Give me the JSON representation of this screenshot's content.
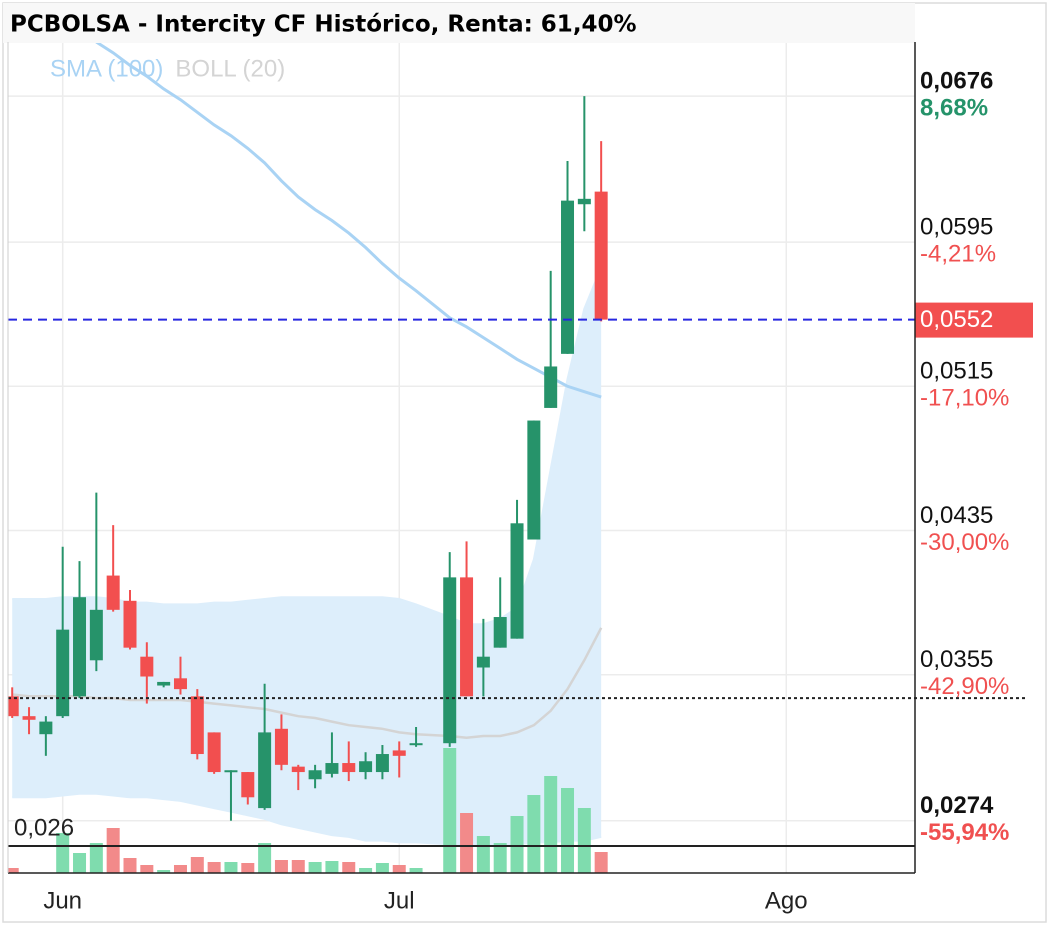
{
  "chart_data": {
    "type": "candlestick",
    "title": "PCBOLSA - Intercity CF Histórico, Renta: 61,40%",
    "x": [
      0,
      1,
      2,
      3,
      4,
      5,
      6,
      7,
      8,
      9,
      10,
      11,
      12,
      13,
      14,
      15,
      16,
      17,
      18,
      19,
      20,
      21,
      22,
      23,
      24,
      26,
      27,
      28,
      29,
      30,
      31,
      32,
      33,
      34,
      35
    ],
    "open": [
      0.0343,
      0.0332,
      0.0322,
      0.0332,
      0.0343,
      0.0363,
      0.041,
      0.0396,
      0.0365,
      0.0349,
      0.0353,
      0.0343,
      0.0323,
      0.0301,
      0.0301,
      0.0281,
      0.0325,
      0.0304,
      0.0297,
      0.03,
      0.0306,
      0.0301,
      0.0301,
      0.0313,
      0.0316,
      0.0317,
      0.0409,
      0.0359,
      0.037,
      0.0375,
      0.043,
      0.0503,
      0.0533,
      0.0616,
      0.0623
    ],
    "high": [
      0.0348,
      0.0337,
      0.0332,
      0.0426,
      0.0418,
      0.0456,
      0.0438,
      0.0402,
      0.0373,
      0.0351,
      0.0365,
      0.0347,
      0.0323,
      0.0302,
      0.0301,
      0.035,
      0.0333,
      0.0305,
      0.0305,
      0.0323,
      0.0318,
      0.0312,
      0.0316,
      0.0318,
      0.0326,
      0.0423,
      0.0429,
      0.0386,
      0.0409,
      0.0452,
      0.0496,
      0.0579,
      0.064,
      0.0676,
      0.0651
    ],
    "low": [
      0.0331,
      0.0322,
      0.031,
      0.0331,
      0.0342,
      0.0357,
      0.039,
      0.0369,
      0.0339,
      0.0348,
      0.0344,
      0.0308,
      0.03,
      0.0274,
      0.0283,
      0.028,
      0.0302,
      0.0291,
      0.0292,
      0.0298,
      0.0296,
      0.0297,
      0.0297,
      0.0298,
      0.0315,
      0.0315,
      0.0343,
      0.0343,
      0.037,
      0.0375,
      0.043,
      0.0503,
      0.0533,
      0.0601,
      0.0551
    ],
    "close": [
      0.0332,
      0.033,
      0.0329,
      0.038,
      0.0398,
      0.0391,
      0.0391,
      0.037,
      0.0354,
      0.0351,
      0.0347,
      0.0311,
      0.0301,
      0.0302,
      0.0287,
      0.0323,
      0.0305,
      0.0301,
      0.0302,
      0.0306,
      0.0301,
      0.0307,
      0.0311,
      0.031,
      0.0317,
      0.0409,
      0.0343,
      0.0365,
      0.0387,
      0.0439,
      0.0496,
      0.0526,
      0.0618,
      0.0619,
      0.0552
    ],
    "volume": [
      5,
      0,
      0,
      40,
      20,
      30,
      45,
      15,
      8,
      3,
      8,
      16,
      11,
      11,
      10,
      30,
      13,
      13,
      11,
      12,
      11,
      5,
      10,
      8,
      5,
      125,
      60,
      37,
      30,
      57,
      78,
      97,
      85,
      65,
      21
    ],
    "up_color": "#26936a",
    "down_color": "#f24f4f",
    "volume_up_color": "#7fdcae",
    "volume_down_color": "#f28a8a",
    "series": [
      {
        "name": "SMA (100)",
        "color": "#a9d3f4",
        "values": [
          null,
          null,
          null,
          null,
          null,
          0.0706,
          0.07,
          0.0693,
          0.0687,
          0.068,
          0.0674,
          0.0667,
          0.066,
          0.0654,
          0.0647,
          0.0639,
          0.0629,
          0.062,
          0.0613,
          0.0607,
          0.06,
          0.0592,
          0.0583,
          0.0575,
          0.0568,
          0.0553,
          0.0548,
          0.0542,
          0.0536,
          0.053,
          0.0525,
          0.052,
          0.0515,
          0.0512,
          0.0509
        ]
      },
      {
        "name": "BOLL (20)",
        "color": "#d4d4d4",
        "band_color": "#ddeefb",
        "upper": [
          0.0397,
          0.0397,
          0.0397,
          0.0398,
          0.0398,
          0.0398,
          0.0397,
          0.0395,
          0.0395,
          0.0394,
          0.0394,
          0.0394,
          0.0395,
          0.0395,
          0.0396,
          0.0397,
          0.0398,
          0.0398,
          0.0398,
          0.0398,
          0.0398,
          0.0398,
          0.0398,
          0.0397,
          0.0394,
          0.0387,
          0.0383,
          0.0383,
          0.0386,
          0.0392,
          0.0419,
          0.0469,
          0.0519,
          0.0558,
          0.0581
        ],
        "middle": [
          0.0344,
          0.0343,
          0.0343,
          0.0343,
          0.0343,
          0.0342,
          0.0342,
          0.0341,
          0.0341,
          0.0341,
          0.0341,
          0.034,
          0.0339,
          0.0338,
          0.0337,
          0.0336,
          0.0334,
          0.0332,
          0.0331,
          0.0329,
          0.0327,
          0.0326,
          0.0325,
          0.0323,
          0.0322,
          0.0321,
          0.032,
          0.0321,
          0.0321,
          0.0323,
          0.0327,
          0.0335,
          0.0347,
          0.0363,
          0.0381
        ],
        "lower": [
          0.0287,
          0.0287,
          0.0287,
          0.0288,
          0.0289,
          0.0289,
          0.0288,
          0.0287,
          0.0287,
          0.0286,
          0.0285,
          0.0283,
          0.0281,
          0.0279,
          0.0277,
          0.0275,
          0.0272,
          0.027,
          0.0268,
          0.0266,
          0.0265,
          0.0263,
          0.0263,
          0.0262,
          0.0262,
          0.0261,
          0.0261,
          0.0261,
          0.0261,
          0.0261,
          0.0262,
          0.0262,
          0.0263,
          0.0263,
          0.0265
        ]
      }
    ],
    "xlim": [
      -0.25,
      53.65
    ],
    "ylim": [
      0.0245,
      0.0706
    ],
    "xticks": [
      {
        "value": 3,
        "label": "Jun"
      },
      {
        "value": 23,
        "label": "Jul"
      },
      {
        "value": 46,
        "label": "Ago"
      }
    ],
    "yticks": [
      {
        "value": 0.0676,
        "label": "0,0676"
      },
      {
        "value": 0.0595,
        "label": "0,0595"
      },
      {
        "value": 0.0515,
        "label": "0,0515"
      },
      {
        "value": 0.0435,
        "label": "0,0435"
      },
      {
        "value": 0.0355,
        "label": "0,0355"
      },
      {
        "value": 0.0274,
        "label": "0,0274"
      }
    ],
    "ytick_changes": [
      "8,68%",
      "-4,21%",
      "-17,10%",
      "-30,00%",
      "-42,90%",
      "-55,94%"
    ],
    "current_price": {
      "value": 0.0552,
      "label": "0,0552"
    },
    "reference_line": 0.0342,
    "support_line": {
      "value": 0.026,
      "label": "0,026"
    },
    "grid": true
  }
}
